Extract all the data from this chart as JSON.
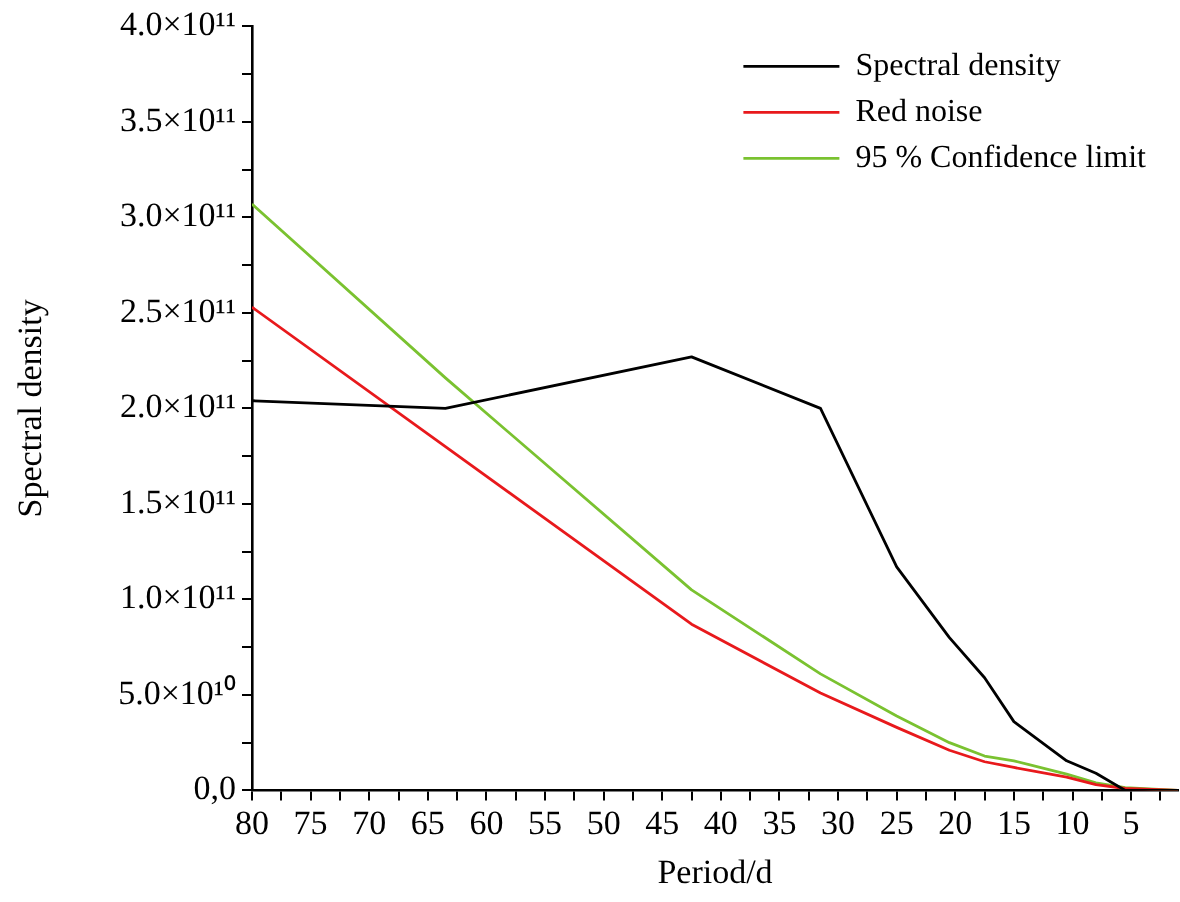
{
  "chart_data": {
    "type": "line",
    "xlabel": "Period/d",
    "ylabel": "Spectral density",
    "xlim": [
      80,
      1
    ],
    "xticks": [
      80,
      {
        "value": 77.5,
        "label": null
      },
      75,
      {
        "value": 72.5,
        "label": null
      },
      70,
      {
        "value": 67.5,
        "label": null
      },
      65,
      {
        "value": 62.5,
        "label": null
      },
      60,
      {
        "value": 57.5,
        "label": null
      },
      55,
      {
        "value": 52.5,
        "label": null
      },
      50,
      {
        "value": 47.5,
        "label": null
      },
      45,
      {
        "value": 42.5,
        "label": null
      },
      40,
      {
        "value": 37.5,
        "label": null
      },
      35,
      {
        "value": 32.5,
        "label": null
      },
      30,
      {
        "value": 27.5,
        "label": null
      },
      25,
      {
        "value": 22.5,
        "label": null
      },
      20,
      {
        "value": 17.5,
        "label": null
      },
      15,
      {
        "value": 12.5,
        "label": null
      },
      10,
      {
        "value": 7.5,
        "label": null
      },
      5,
      {
        "value": 2.5,
        "label": null
      }
    ],
    "ylim": [
      0,
      400000000000
    ],
    "yticks": [
      {
        "value": 0,
        "label": "0,0"
      },
      {
        "value": 25000000000,
        "label": null
      },
      {
        "value": 50000000000,
        "label": "5.0×10¹⁰"
      },
      {
        "value": 75000000000,
        "label": null
      },
      {
        "value": 100000000000,
        "label": "1.0×10¹¹"
      },
      {
        "value": 125000000000,
        "label": null
      },
      {
        "value": 150000000000,
        "label": "1.5×10¹¹"
      },
      {
        "value": 175000000000,
        "label": null
      },
      {
        "value": 200000000000,
        "label": "2.0×10¹¹"
      },
      {
        "value": 225000000000,
        "label": null
      },
      {
        "value": 250000000000,
        "label": "2.5×10¹¹"
      },
      {
        "value": 275000000000,
        "label": null
      },
      {
        "value": 300000000000,
        "label": "3.0×10¹¹"
      },
      {
        "value": 325000000000,
        "label": null
      },
      {
        "value": 350000000000,
        "label": "3.5×10¹¹"
      },
      {
        "value": 375000000000,
        "label": null
      },
      {
        "value": 400000000000,
        "label": "4.0×10¹¹"
      }
    ],
    "x": [
      80,
      63.5,
      42.5,
      31.5,
      25,
      20.5,
      17.5,
      15,
      10.5,
      8,
      5.5,
      1
    ],
    "series": [
      {
        "name": "Spectral density",
        "color": "#000000",
        "values": [
          204000000000,
          200000000000,
          227000000000,
          200000000000,
          117000000000,
          80000000000,
          59000000000,
          36000000000,
          15500000000,
          9000000000,
          0,
          0
        ]
      },
      {
        "name": "Red noise",
        "color": "#e8191c",
        "values": [
          253000000000,
          180000000000,
          87000000000,
          51000000000,
          33000000000,
          21000000000,
          15000000000,
          12000000000,
          7000000000,
          3000000000,
          1000000000,
          0
        ]
      },
      {
        "name": "95 % Confidence limit",
        "color": "#7ac230",
        "values": [
          307000000000,
          216000000000,
          105000000000,
          61000000000,
          39000000000,
          25000000000,
          18000000000,
          15500000000,
          8500000000,
          4000000000,
          1500000000,
          0
        ]
      }
    ],
    "legend": "top right",
    "grid": false,
    "marker": "none",
    "line_style": "solid"
  }
}
